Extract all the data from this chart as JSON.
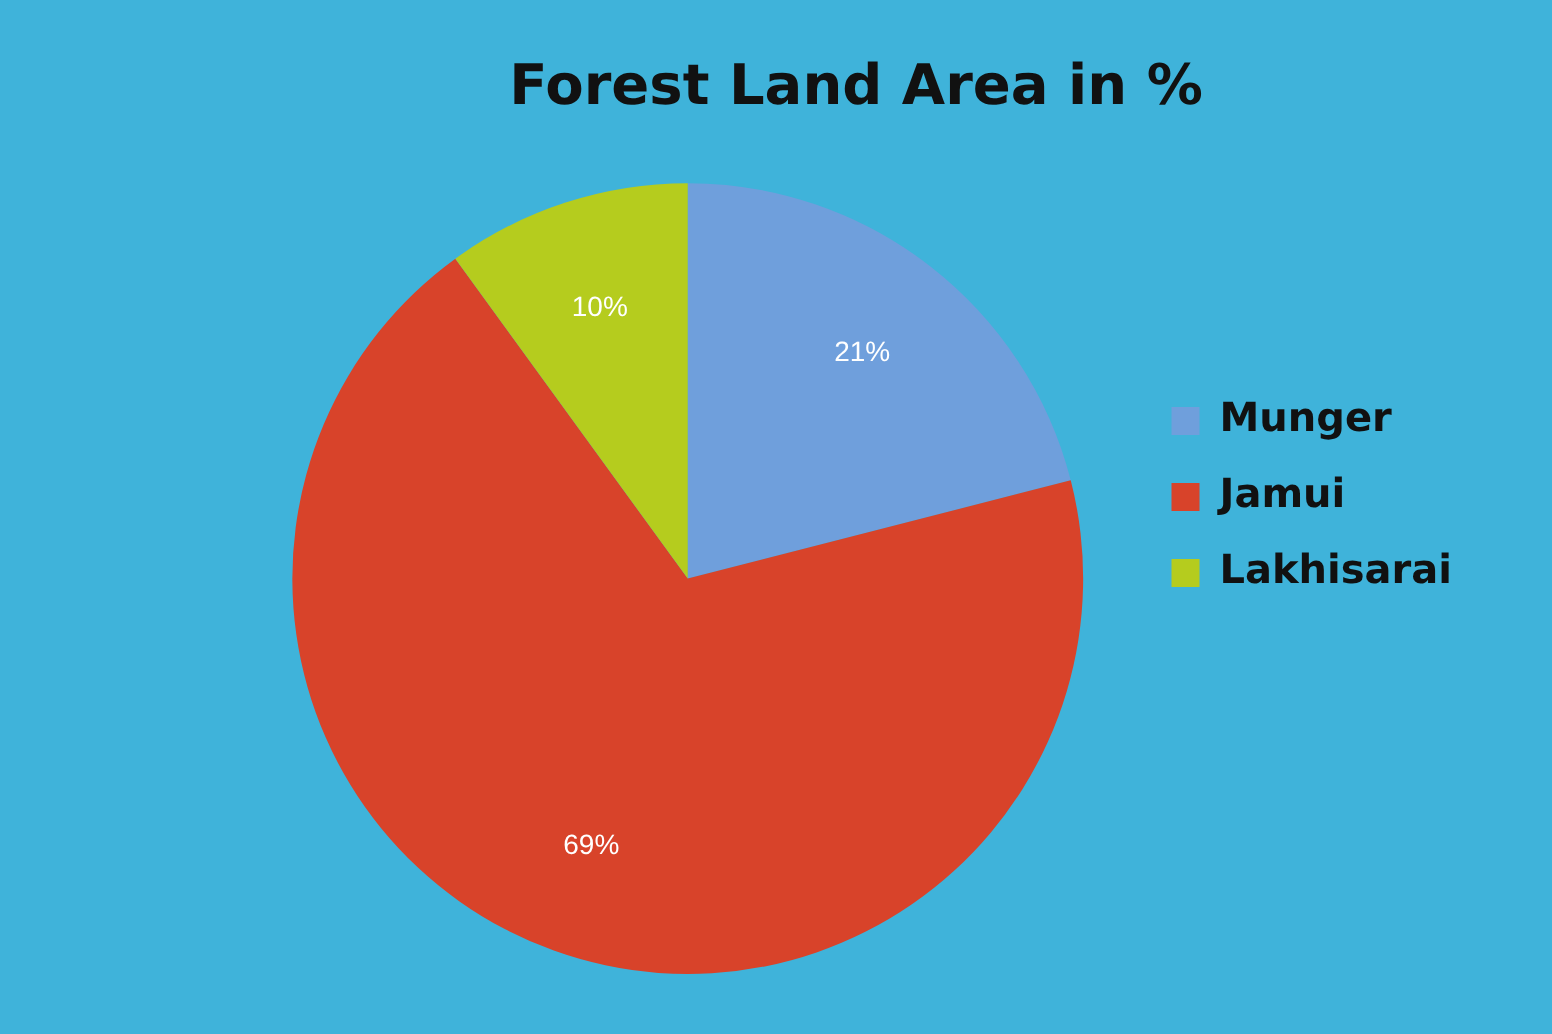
{
  "chart_data": {
    "type": "pie",
    "title": "Forest Land Area in %",
    "categories": [
      "Munger",
      "Jamui",
      "Lakhisarai"
    ],
    "values": [
      21,
      69,
      10
    ],
    "colors": [
      "#6f9fdc",
      "#d8432a",
      "#b5cc1e"
    ],
    "value_labels": [
      "21%",
      "69%",
      "10%"
    ],
    "legend": "right"
  }
}
